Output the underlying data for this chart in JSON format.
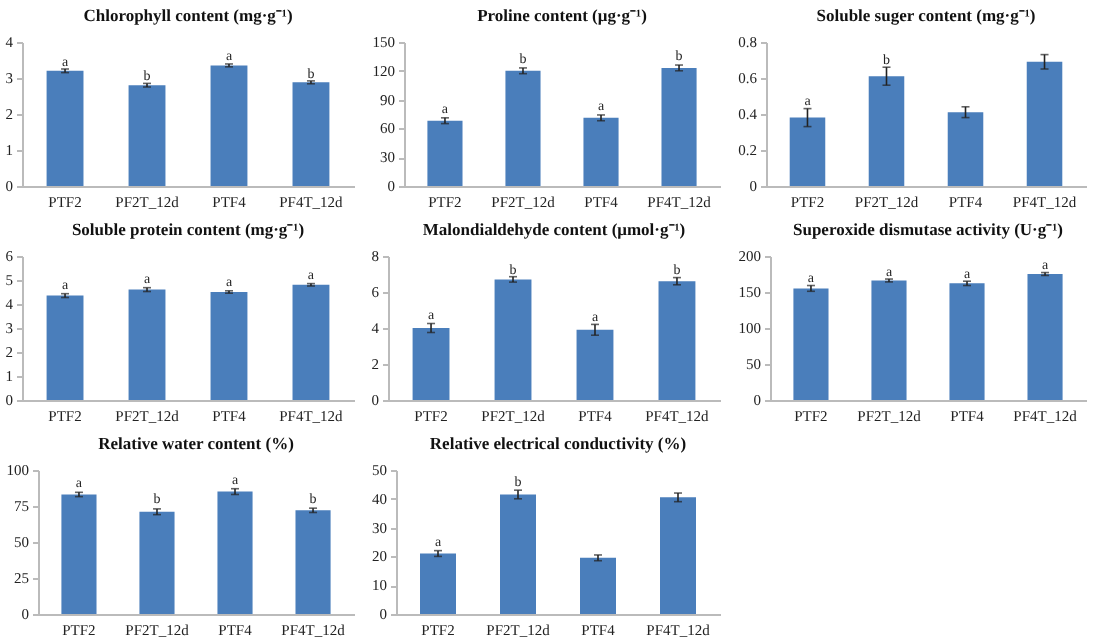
{
  "chart_data": [
    {
      "type": "bar",
      "title": "Chlorophyll content (mg·g⁻¹)",
      "categories": [
        "PTF2",
        "PF2T_12d",
        "PTF4",
        "PF4T_12d"
      ],
      "series": [
        {
          "color": "#4a7ebb",
          "values": [
            3.2,
            2.8,
            3.35,
            2.88
          ],
          "errors": [
            0.05,
            0.05,
            0.04,
            0.04
          ]
        }
      ],
      "ylim": [
        0,
        4
      ],
      "yticks": [
        0,
        1,
        2,
        3,
        4
      ],
      "grid": false,
      "annotations": [
        {
          "text": "a",
          "x": "PTF2",
          "y": 3.45
        },
        {
          "text": "b",
          "x": "PF2T_12d",
          "y": 3.05
        },
        {
          "text": "a",
          "x": "PTF4",
          "y": 3.6
        },
        {
          "text": "b",
          "x": "PF4T_12d",
          "y": 3.12
        }
      ]
    },
    {
      "type": "bar",
      "title": "Proline content (μg·g⁻¹)",
      "categories": [
        "PTF2",
        "PF2T_12d",
        "PTF4",
        "PF4T_12d"
      ],
      "series": [
        {
          "color": "#4a7ebb",
          "values": [
            68,
            120,
            71,
            123
          ],
          "errors": [
            3,
            3,
            3,
            3
          ]
        }
      ],
      "ylim": [
        0,
        150
      ],
      "yticks": [
        0,
        30,
        60,
        90,
        120,
        150
      ],
      "grid": false,
      "annotations": [
        {
          "text": "a",
          "x": "PTF2",
          "y": 80
        },
        {
          "text": "b",
          "x": "PF2T_12d",
          "y": 132
        },
        {
          "text": "a",
          "x": "PTF4",
          "y": 83
        },
        {
          "text": "b",
          "x": "PF4T_12d",
          "y": 135
        }
      ]
    },
    {
      "type": "bar",
      "title": "Soluble suger content (mg·g⁻¹)",
      "categories": [
        "PTF2",
        "PF2T_12d",
        "PTF4",
        "PF4T_12d"
      ],
      "series": [
        {
          "color": "#4a7ebb",
          "values": [
            0.38,
            0.61,
            0.41,
            0.69
          ],
          "errors": [
            0.05,
            0.05,
            0.03,
            0.04
          ]
        }
      ],
      "ylim": [
        0,
        0.8
      ],
      "yticks": [
        0,
        0.2,
        0.4,
        0.6,
        0.8
      ],
      "grid": false,
      "annotations": [
        {
          "text": "a",
          "x": "PTF2",
          "y": 0.47
        },
        {
          "text": "b",
          "x": "PF2T_12d",
          "y": 0.7
        }
      ]
    },
    {
      "type": "bar",
      "title": "Soluble protein content (mg·g⁻¹)",
      "categories": [
        "PTF2",
        "PF2T_12d",
        "PTF4",
        "PF4T_12d"
      ],
      "series": [
        {
          "color": "#4a7ebb",
          "values": [
            4.35,
            4.6,
            4.5,
            4.8
          ],
          "errors": [
            0.08,
            0.08,
            0.05,
            0.05
          ]
        }
      ],
      "ylim": [
        0,
        6
      ],
      "yticks": [
        0,
        1,
        2,
        3,
        4,
        5,
        6
      ],
      "grid": false,
      "annotations": [
        {
          "text": "a",
          "x": "PTF2",
          "y": 4.8
        },
        {
          "text": "a",
          "x": "PF2T_12d",
          "y": 5.05
        },
        {
          "text": "a",
          "x": "PTF4",
          "y": 4.9
        },
        {
          "text": "a",
          "x": "PF4T_12d",
          "y": 5.2
        }
      ]
    },
    {
      "type": "bar",
      "title": "Malondialdehyde content (μmol·g⁻¹)",
      "categories": [
        "PTF2",
        "PF2T_12d",
        "PTF4",
        "PF4T_12d"
      ],
      "series": [
        {
          "color": "#4a7ebb",
          "values": [
            4.0,
            6.7,
            3.9,
            6.6
          ],
          "errors": [
            0.25,
            0.15,
            0.3,
            0.2
          ]
        }
      ],
      "ylim": [
        0,
        8
      ],
      "yticks": [
        0,
        2,
        4,
        6,
        8
      ],
      "grid": false,
      "annotations": [
        {
          "text": "a",
          "x": "PTF2",
          "y": 4.7
        },
        {
          "text": "b",
          "x": "PF2T_12d",
          "y": 7.2
        },
        {
          "text": "a",
          "x": "PTF4",
          "y": 4.6
        },
        {
          "text": "b",
          "x": "PF4T_12d",
          "y": 7.2
        }
      ]
    },
    {
      "type": "bar",
      "title": "Superoxide dismutase activity (U·g⁻¹)",
      "categories": [
        "PTF2",
        "PF2T_12d",
        "PTF4",
        "PF4T_12d"
      ],
      "series": [
        {
          "color": "#4a7ebb",
          "values": [
            155,
            166,
            162,
            175
          ],
          "errors": [
            4,
            2,
            3,
            2
          ]
        }
      ],
      "ylim": [
        0,
        200
      ],
      "yticks": [
        0,
        50,
        100,
        150,
        200
      ],
      "grid": false,
      "annotations": [
        {
          "text": "a",
          "x": "PTF2",
          "y": 170
        },
        {
          "text": "a",
          "x": "PF2T_12d",
          "y": 178
        },
        {
          "text": "a",
          "x": "PTF4",
          "y": 175
        },
        {
          "text": "a",
          "x": "PF4T_12d",
          "y": 188
        }
      ]
    },
    {
      "type": "bar",
      "title": "Relative water content (%)",
      "categories": [
        "PTF2",
        "PF2T_12d",
        "PTF4",
        "PF4T_12d"
      ],
      "series": [
        {
          "color": "#4a7ebb",
          "values": [
            83,
            71,
            85,
            72
          ],
          "errors": [
            1.5,
            2,
            2,
            1.5
          ]
        }
      ],
      "ylim": [
        0,
        100
      ],
      "yticks": [
        0,
        25,
        50,
        75,
        100
      ],
      "grid": false,
      "annotations": [
        {
          "text": "a",
          "x": "PTF2",
          "y": 91
        },
        {
          "text": "b",
          "x": "PF2T_12d",
          "y": 80
        },
        {
          "text": "a",
          "x": "PTF4",
          "y": 93
        },
        {
          "text": "b",
          "x": "PF4T_12d",
          "y": 80
        }
      ]
    },
    {
      "type": "bar",
      "title": "Relative electrical conductivity (%)",
      "categories": [
        "PTF2",
        "PF2T_12d",
        "PTF4",
        "PF4T_12d"
      ],
      "series": [
        {
          "color": "#4a7ebb",
          "values": [
            21,
            41.5,
            19.5,
            40.5
          ],
          "errors": [
            1,
            1.5,
            1,
            1.5
          ]
        }
      ],
      "ylim": [
        0,
        50
      ],
      "yticks": [
        0,
        10,
        20,
        30,
        40,
        50
      ],
      "grid": false,
      "annotations": [
        {
          "text": "a",
          "x": "PTF2",
          "y": 25
        },
        {
          "text": "b",
          "x": "PF2T_12d",
          "y": 46
        }
      ]
    }
  ]
}
